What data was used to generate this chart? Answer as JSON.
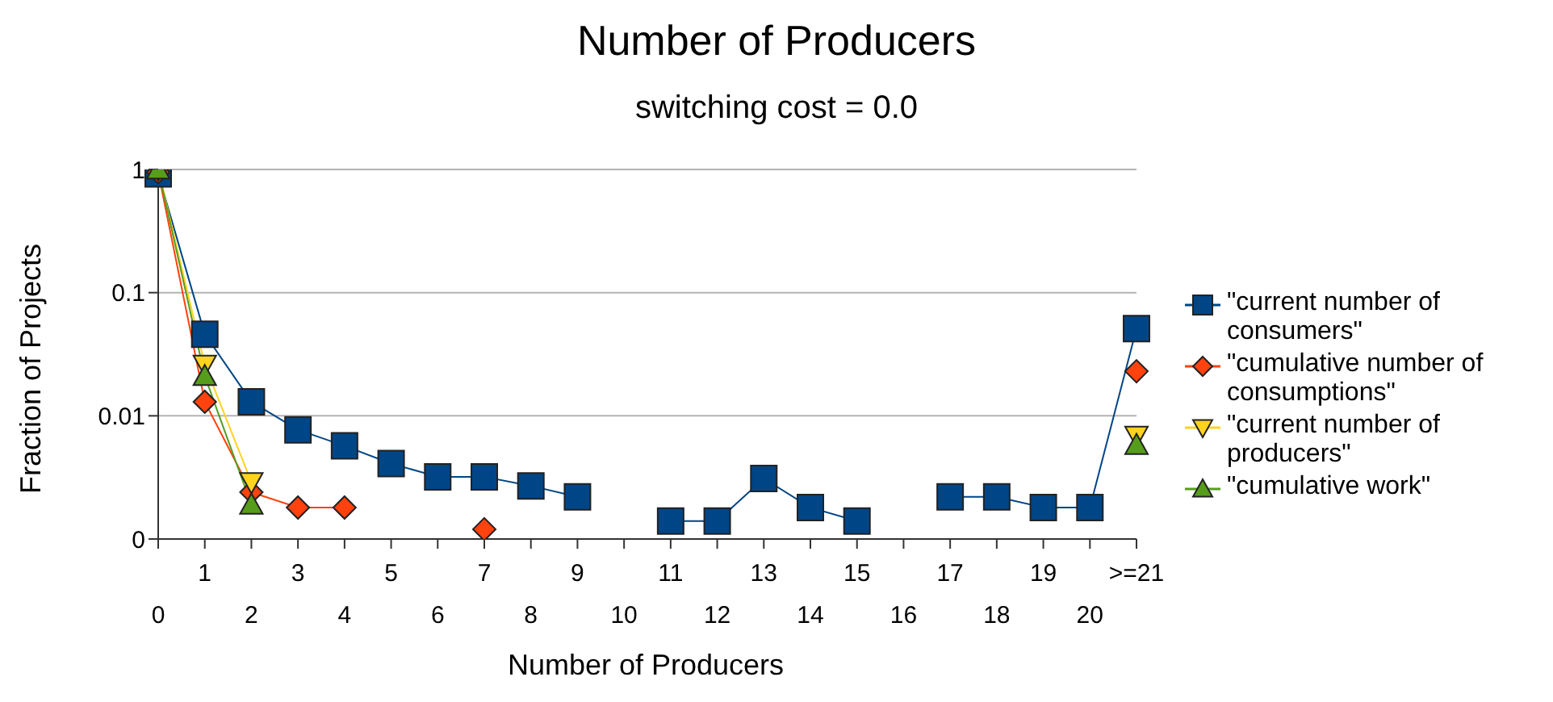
{
  "chart_data": {
    "type": "line",
    "title": "Number of Producers",
    "subtitle": "switching cost = 0.0",
    "xlabel": "Number of Producers",
    "ylabel": "Fraction of Projects",
    "categories": [
      "0",
      "1",
      "2",
      "3",
      "4",
      "5",
      "6",
      "7",
      "8",
      "9",
      "10",
      "11",
      "12",
      "13",
      "14",
      "15",
      "16",
      "17",
      "18",
      "19",
      "20",
      ">=21"
    ],
    "series": [
      {
        "name": "\"current number of consumers\"",
        "color": "#004586",
        "marker": "square",
        "values": [
          0.92,
          0.046,
          0.013,
          0.0077,
          0.0057,
          0.0041,
          0.0032,
          0.0032,
          0.0027,
          0.0022,
          null,
          0.0014,
          0.0014,
          0.0031,
          0.0018,
          0.0014,
          null,
          0.0022,
          0.0022,
          0.0018,
          0.0018,
          0.051
        ]
      },
      {
        "name": "\"cumulative number of consumptions\"",
        "color": "#ff420e",
        "marker": "diamond",
        "values": [
          0.95,
          0.013,
          0.0024,
          0.0018,
          0.0018,
          null,
          null,
          0.0012,
          null,
          null,
          null,
          null,
          null,
          null,
          null,
          null,
          null,
          null,
          null,
          null,
          null,
          0.023
        ]
      },
      {
        "name": "\"current number of producers\"",
        "color": "#ffd320",
        "marker": "triangle-down",
        "values": [
          1,
          0.026,
          0.0029,
          null,
          null,
          null,
          null,
          null,
          null,
          null,
          null,
          null,
          null,
          null,
          null,
          null,
          null,
          null,
          null,
          null,
          null,
          0.0069
        ]
      },
      {
        "name": "\"cumulative work\"",
        "color": "#579d1c",
        "marker": "triangle",
        "values": [
          1,
          0.021,
          0.0019,
          null,
          null,
          null,
          null,
          null,
          null,
          null,
          null,
          null,
          null,
          null,
          null,
          null,
          null,
          null,
          null,
          null,
          null,
          0.0058
        ]
      }
    ],
    "log": true,
    "ylim": [
      0.001,
      1
    ],
    "yticks": [
      {
        "value": 0.001,
        "label": "0"
      },
      0.01,
      0.1,
      1
    ],
    "grid": "y",
    "legend": "right"
  }
}
